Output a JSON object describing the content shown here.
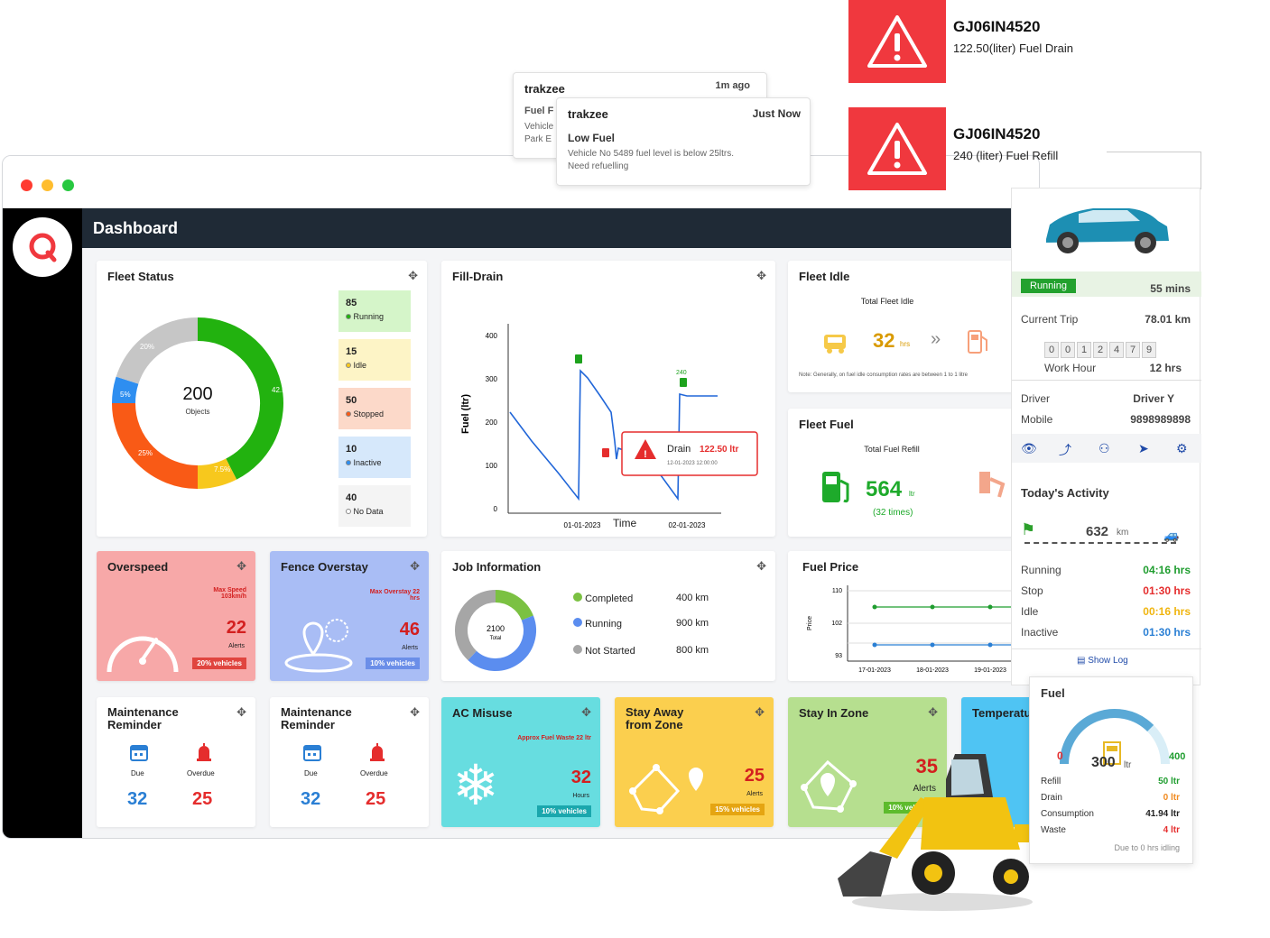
{
  "window": {
    "dashboard_title": "Dashboard"
  },
  "notifications": [
    {
      "brand": "trakzee",
      "time": "1m ago",
      "title": "Fuel F",
      "line1": "Vehicle",
      "line2": "Park E"
    },
    {
      "brand": "trakzee",
      "time": "Just Now",
      "title": "Low Fuel",
      "line1": "Vehicle No 5489 fuel level is below 25ltrs.",
      "line2": "Need refuelling"
    }
  ],
  "alerts": [
    {
      "vehicle": "GJ06IN4520",
      "message": "122.50(liter) Fuel Drain"
    },
    {
      "vehicle": "GJ06IN4520",
      "message": "240 (liter) Fuel Refill"
    }
  ],
  "fleet_status": {
    "title": "Fleet Status",
    "total": "200",
    "total_label": "Objects",
    "segment_labels": [
      "42.5%",
      "7.5%",
      "25%",
      "5%",
      "20%"
    ],
    "colors": {
      "running": "#22b20f",
      "idle": "#f7c81d",
      "stopped": "#f95a16",
      "inactive": "#2e8ef0",
      "nodata": "#c6c6c6"
    },
    "legend": [
      {
        "count": "85",
        "label": "Running",
        "bg": "#d5f5c9",
        "dot": "#22b20f"
      },
      {
        "count": "15",
        "label": "Idle",
        "bg": "#fdf4c6",
        "dot": "#f7c81d"
      },
      {
        "count": "50",
        "label": "Stopped",
        "bg": "#fcd9c9",
        "dot": "#f95a16"
      },
      {
        "count": "10",
        "label": "Inactive",
        "bg": "#d6e8fb",
        "dot": "#2e8ef0"
      },
      {
        "count": "40",
        "label": "No Data",
        "bg": "#f4f4f4",
        "dot": "#ffffff"
      }
    ]
  },
  "fill_drain": {
    "title": "Fill-Drain",
    "ylabel": "Fuel (ltr)",
    "xlabel": "Time",
    "yticks": [
      "400",
      "300",
      "200",
      "100",
      "0"
    ],
    "xticks": [
      "01-01-2023",
      "02-01-2023"
    ],
    "peak_label": "240",
    "drain_label": "Drain",
    "drain_value": "122.50 ltr",
    "drain_date": "12-01-2023 12:00:00"
  },
  "fleet_idle": {
    "title": "Fleet Idle",
    "total_label": "Total Fleet Idle",
    "value": "32",
    "unit": "hrs",
    "footnote": "Note: Generally, on fuel idle consumption rates are between 1 to 1 litre"
  },
  "fleet_fuel": {
    "title": "Fleet Fuel",
    "total_label": "Total Fuel Refill",
    "value": "564",
    "unit": "ltr",
    "times": "(32 times)"
  },
  "overspeed": {
    "title": "Overspeed",
    "label": "Max Speed 103km/h",
    "value": "22",
    "sub": "Alerts",
    "badge": "20% vehicles"
  },
  "fence": {
    "title": "Fence Overstay",
    "label": "Max Overstay 22 hrs",
    "value": "46",
    "sub": "Alerts",
    "badge": "10% vehicles"
  },
  "job_info": {
    "title": "Job Information",
    "total": "2100",
    "total_label": "Total",
    "items": [
      {
        "label": "Completed",
        "value": "400 km",
        "color": "#7bc142"
      },
      {
        "label": "Running",
        "value": "900 km",
        "color": "#5b8def"
      },
      {
        "label": "Not Started",
        "value": "800 km",
        "color": "#a6a6a6"
      }
    ]
  },
  "fuel_price": {
    "title": "Fuel Price",
    "ylabel": "Price",
    "yticks": [
      "110",
      "102",
      "93"
    ],
    "xticks": [
      "17-01-2023",
      "18-01-2023",
      "19-01-2023"
    ]
  },
  "maintenance": [
    {
      "title": "Maintenance Reminder",
      "due_label": "Due",
      "overdue_label": "Overdue",
      "due": "32",
      "overdue": "25"
    },
    {
      "title": "Maintenance Reminder",
      "due_label": "Due",
      "overdue_label": "Overdue",
      "due": "32",
      "overdue": "25"
    }
  ],
  "ac_misuse": {
    "title": "AC Misuse",
    "label": "Approx Fuel Waste 22 ltr",
    "value": "32",
    "sub": "Hours",
    "badge": "10% vehicles"
  },
  "stay_away": {
    "title": "Stay Away from Zone",
    "value": "25",
    "sub": "Alerts",
    "badge": "15% vehicles"
  },
  "stay_in": {
    "title": "Stay In Zone",
    "value": "35",
    "sub": "Alerts",
    "badge": "10% vehicles"
  },
  "temperature": {
    "title": "Temperatur"
  },
  "vehicle_panel": {
    "status": "Running",
    "duration": "55 mins",
    "current_trip_label": "Current Trip",
    "current_trip": "78.01 km",
    "odometer": [
      "0",
      "0",
      "1",
      "2",
      "4",
      "7",
      "9"
    ],
    "work_hour_label": "Work Hour",
    "work_hour": "12 hrs",
    "driver_label": "Driver",
    "driver": "Driver Y",
    "mobile_label": "Mobile",
    "mobile": "9898989898",
    "activity_title": "Today's Activity",
    "distance": "632",
    "distance_unit": "km",
    "activity": [
      {
        "label": "Running",
        "value": "04:16 hrs",
        "color": "#1f9d2f"
      },
      {
        "label": "Stop",
        "value": "01:30 hrs",
        "color": "#e52d2d"
      },
      {
        "label": "Idle",
        "value": "00:16 hrs",
        "color": "#f0b50f"
      },
      {
        "label": "Inactive",
        "value": "01:30 hrs",
        "color": "#2a7fd4"
      }
    ],
    "show_log": "Show Log"
  },
  "fuel_panel": {
    "title": "Fuel",
    "min": "0",
    "max": "400",
    "value": "300",
    "unit": "ltr",
    "rows": [
      {
        "label": "Refill",
        "value": "50 ltr",
        "color": "#1f9d2f"
      },
      {
        "label": "Drain",
        "value": "0 ltr",
        "color": "#f08a1f"
      },
      {
        "label": "Consumption",
        "value": "41.94 ltr",
        "color": "#222222"
      },
      {
        "label": "Waste",
        "value": "4 ltr",
        "color": "#e52d2d"
      }
    ],
    "note": "Due to 0 hrs idling"
  }
}
